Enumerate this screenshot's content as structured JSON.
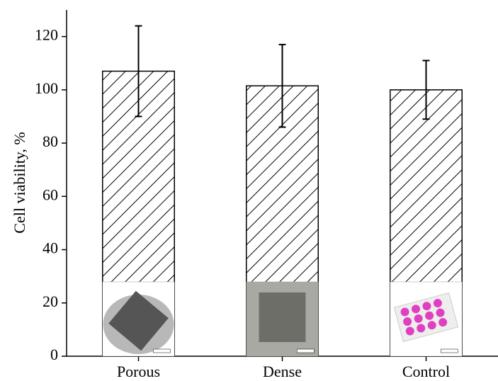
{
  "chart_data": {
    "type": "bar",
    "y_label": "Cell viability, %",
    "categories": [
      "Porous",
      "Dense",
      "Control"
    ],
    "values": [
      107,
      101.5,
      100
    ],
    "errors": [
      17,
      15.5,
      11
    ],
    "ylim": [
      0,
      130
    ],
    "yticks": [
      0,
      20,
      40,
      60,
      80,
      100,
      120
    ],
    "hatch": true,
    "color": "#000000"
  }
}
